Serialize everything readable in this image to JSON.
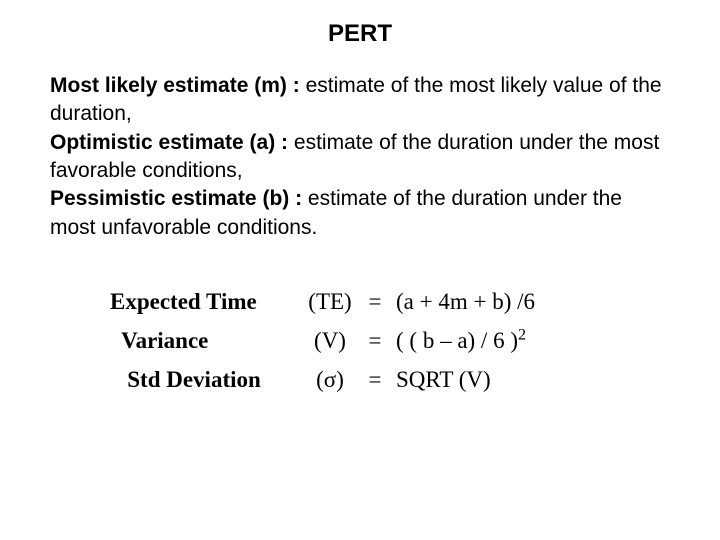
{
  "title": "PERT",
  "defs": {
    "m_term": "Most likely estimate (m) :",
    "m_text": "  estimate of the most likely value of the duration,",
    "a_term": "Optimistic estimate (a) :",
    "a_text": "  estimate of the duration under the most favorable conditions,",
    "b_term": "Pessimistic estimate (b) :",
    "b_text": "  estimate of the duration under the most unfavorable conditions."
  },
  "formulas": {
    "row1": {
      "label": "Expected Time",
      "sym": "(TE)",
      "eq": "=",
      "expr": " (a + 4m + b) /6"
    },
    "row2": {
      "label": "  Variance",
      "sym": "(V)",
      "eq": "=",
      "expr": " ( ( b – a) / 6 )",
      "sup": "2"
    },
    "row3": {
      "label": "   Std Deviation",
      "sym": "(σ)",
      "eq": "=",
      "expr": "  SQRT (V)"
    }
  },
  "style": {
    "background": "#ffffff",
    "text_color": "#000000",
    "title_fontsize": 24,
    "body_fontsize": 21,
    "formula_fontsize": 23
  }
}
